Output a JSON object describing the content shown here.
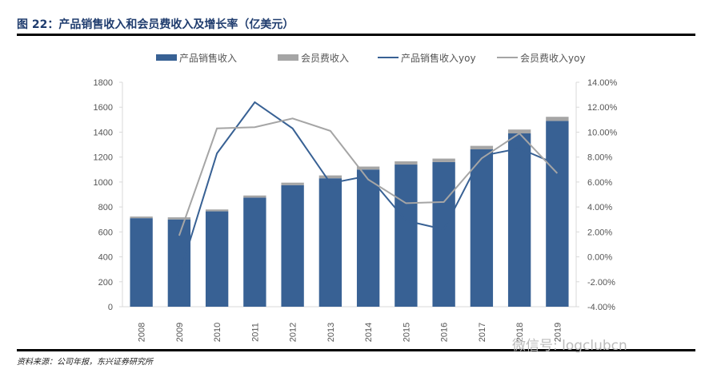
{
  "title": "图 22：产品销售收入和会员费收入及增长率（亿美元）",
  "source": "资料来源：公司年报，东兴证券研究所",
  "watermark": "微信号: logclubcn",
  "colors": {
    "product": "#386194",
    "member": "#a5a5a5",
    "product_yoy": "#386194",
    "member_yoy": "#a5a5a5"
  },
  "chart_data": {
    "type": "bar",
    "stacked": true,
    "categories": [
      "2008",
      "2009",
      "2010",
      "2011",
      "2012",
      "2013",
      "2014",
      "2015",
      "2016",
      "2017",
      "2018",
      "2019"
    ],
    "series": [
      {
        "name": "产品销售收入",
        "type": "bar",
        "axis": "left",
        "values": [
          710,
          700,
          765,
          875,
          975,
          1030,
          1100,
          1140,
          1160,
          1262,
          1390,
          1490
        ]
      },
      {
        "name": "会员费收入",
        "type": "bar",
        "axis": "left",
        "values": [
          13,
          17,
          15,
          17,
          20,
          23,
          24,
          26,
          28,
          28,
          31,
          33
        ]
      },
      {
        "name": "产品销售收入yoy",
        "type": "line",
        "axis": "right",
        "values": [
          null,
          -1.5,
          8.3,
          12.4,
          10.3,
          5.9,
          6.5,
          2.9,
          2.2,
          8.1,
          8.7,
          7.4
        ]
      },
      {
        "name": "会员费收入yoy",
        "type": "line",
        "axis": "right",
        "values": [
          null,
          1.7,
          10.3,
          10.4,
          11.1,
          10.1,
          6.2,
          4.3,
          4.4,
          7.9,
          9.9,
          6.7
        ]
      }
    ],
    "ylim_left": [
      0,
      1800
    ],
    "yticks_left": [
      "0",
      "200",
      "400",
      "600",
      "800",
      "1000",
      "1200",
      "1400",
      "1600",
      "1800"
    ],
    "ylim_right": [
      -4,
      14
    ],
    "yticks_right": [
      "-4.00%",
      "-2.00%",
      "0.00%",
      "2.00%",
      "4.00%",
      "6.00%",
      "8.00%",
      "10.00%",
      "12.00%",
      "14.00%"
    ],
    "legend_position": "top",
    "grid": false
  }
}
